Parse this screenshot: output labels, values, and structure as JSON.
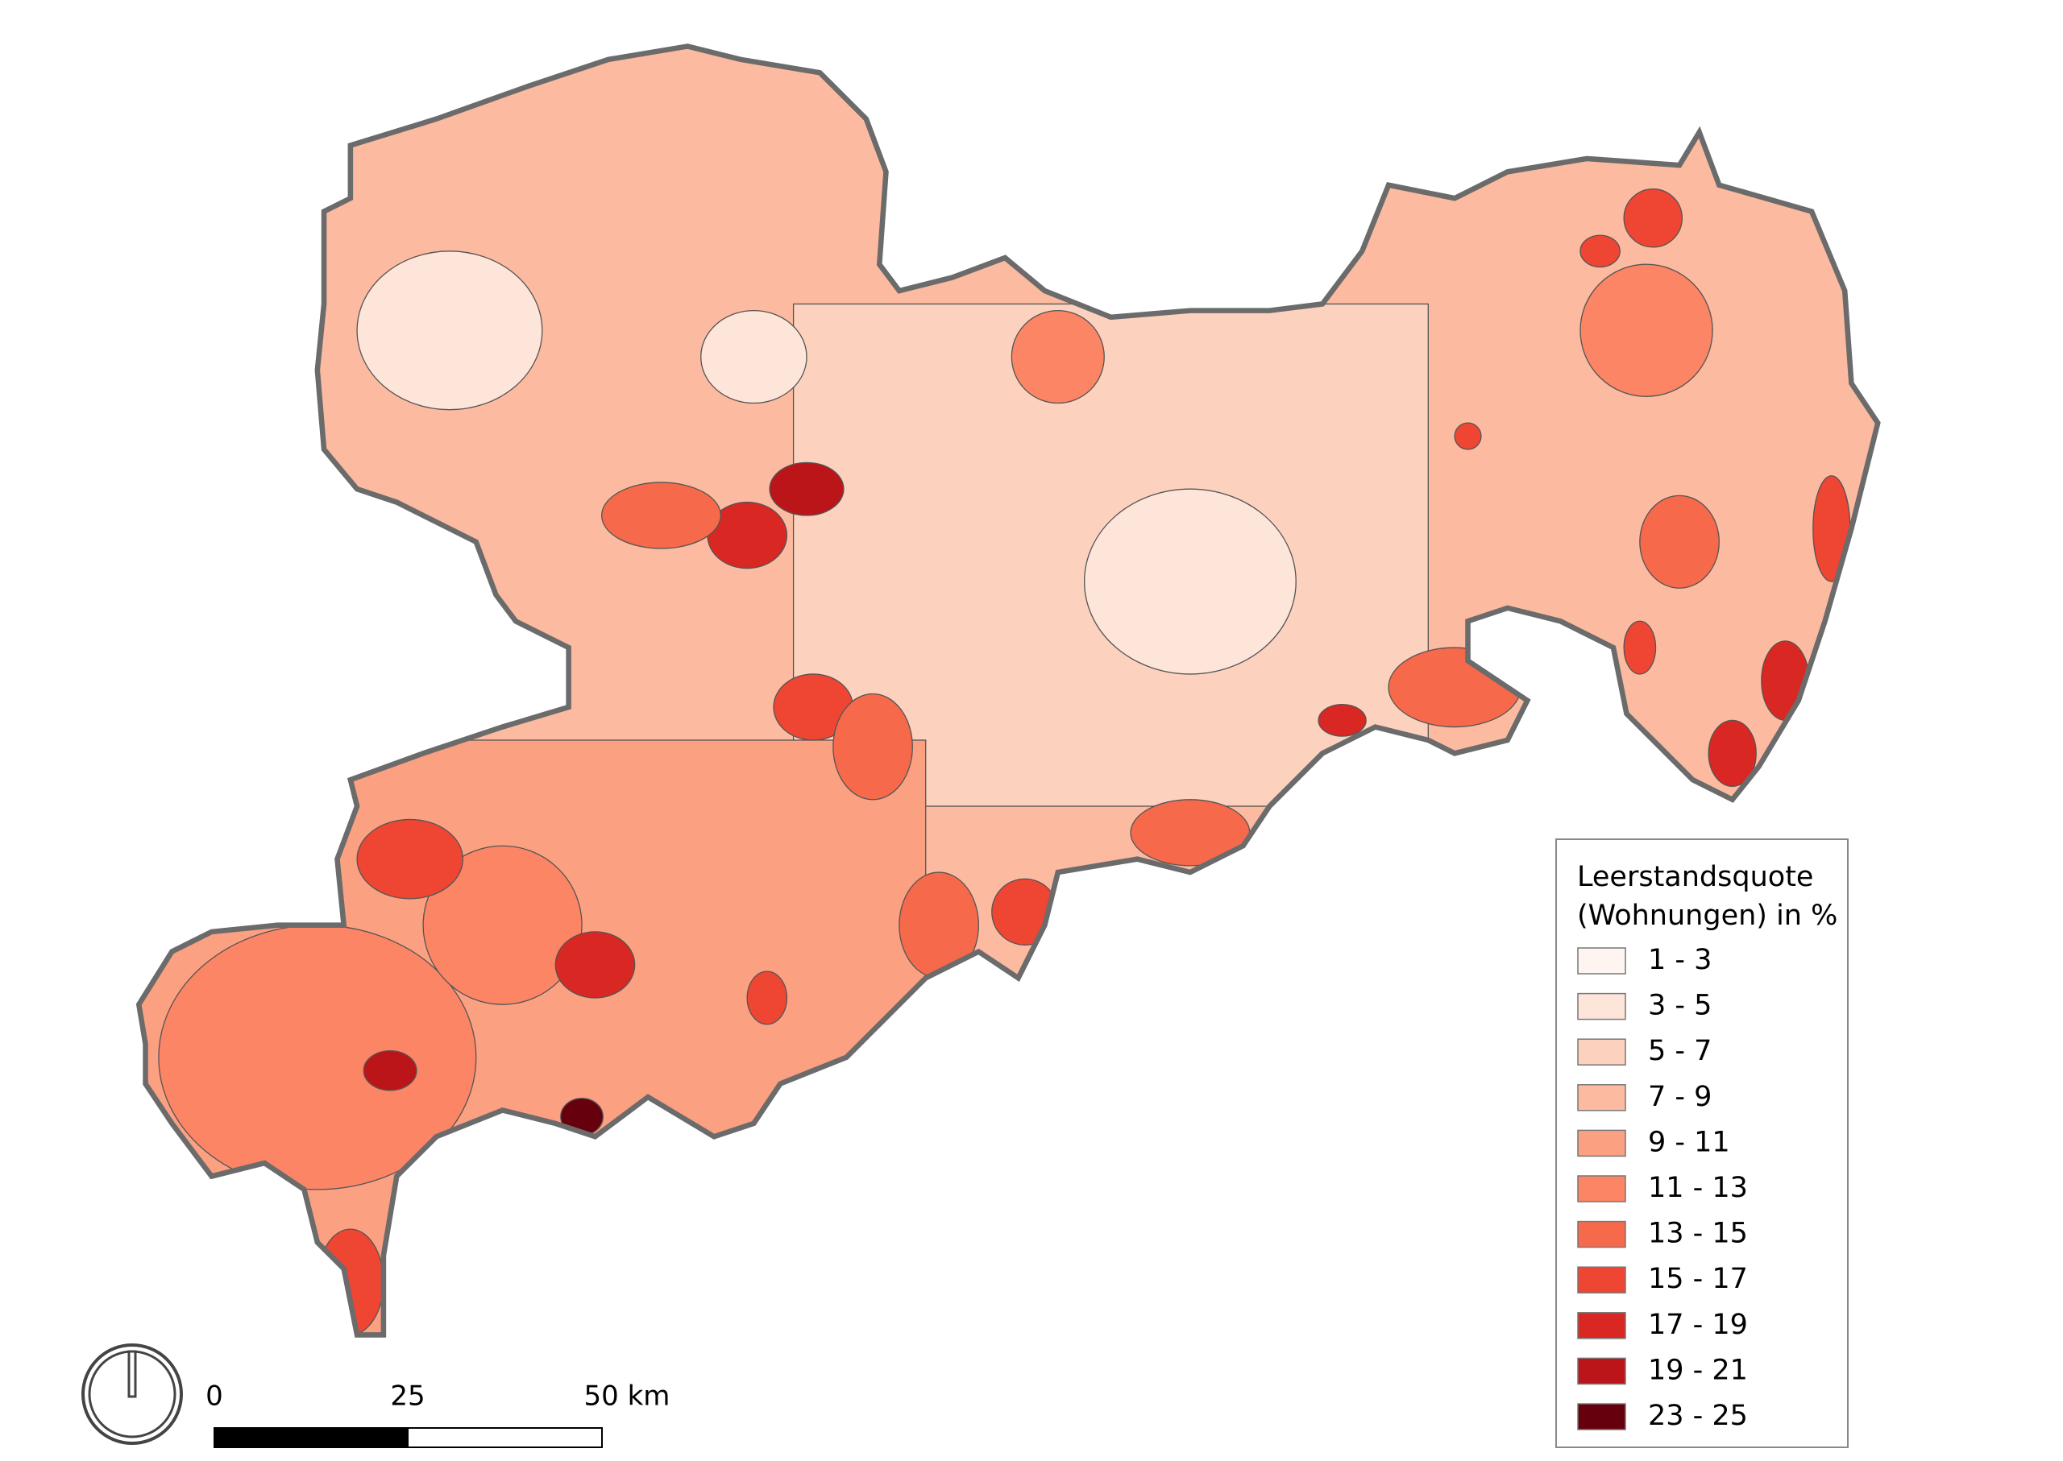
{
  "legend": {
    "title_lines": [
      "Leerstandsquote",
      "(Wohnungen) in %"
    ],
    "items": [
      {
        "label": "1 - 3",
        "color": "#fff5f0"
      },
      {
        "label": "3 - 5",
        "color": "#fee5d9"
      },
      {
        "label": "5 - 7",
        "color": "#fcd2bf"
      },
      {
        "label": "7 - 9",
        "color": "#fcbba1"
      },
      {
        "label": "9 - 11",
        "color": "#fca082"
      },
      {
        "label": "11 - 13",
        "color": "#fb8565"
      },
      {
        "label": "13 - 15",
        "color": "#f6694b"
      },
      {
        "label": "15 - 17",
        "color": "#ef4533"
      },
      {
        "label": "17 - 19",
        "color": "#d92723"
      },
      {
        "label": "19 - 21",
        "color": "#bb151a"
      },
      {
        "label": "23 - 25",
        "color": "#67000d"
      }
    ]
  },
  "scale_bar": {
    "labels": [
      "0",
      "25",
      "50 km"
    ]
  }
}
